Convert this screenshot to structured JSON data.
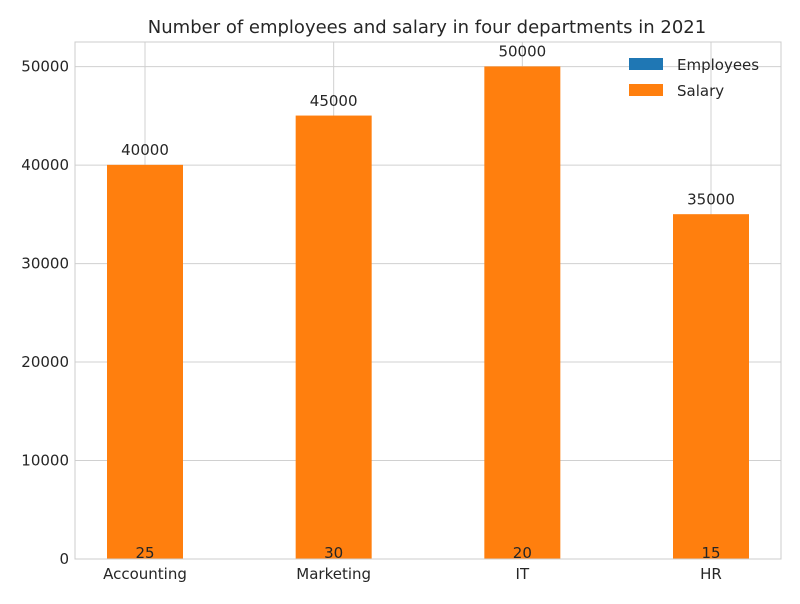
{
  "chart_data": {
    "type": "bar",
    "title": "Number of employees and salary in four departments in 2021",
    "xlabel": "",
    "ylabel": "",
    "categories": [
      "Accounting",
      "Marketing",
      "IT",
      "HR"
    ],
    "series": [
      {
        "name": "Employees",
        "values": [
          25,
          30,
          20,
          15
        ],
        "color": "#1f77b4"
      },
      {
        "name": "Salary",
        "values": [
          40000,
          45000,
          50000,
          35000
        ],
        "color": "#ff7f0e"
      }
    ],
    "stacked": true,
    "ylim": [
      0,
      52500
    ],
    "yticks": [
      0,
      10000,
      20000,
      30000,
      40000,
      50000
    ],
    "grid": true,
    "legend": "top-right"
  }
}
